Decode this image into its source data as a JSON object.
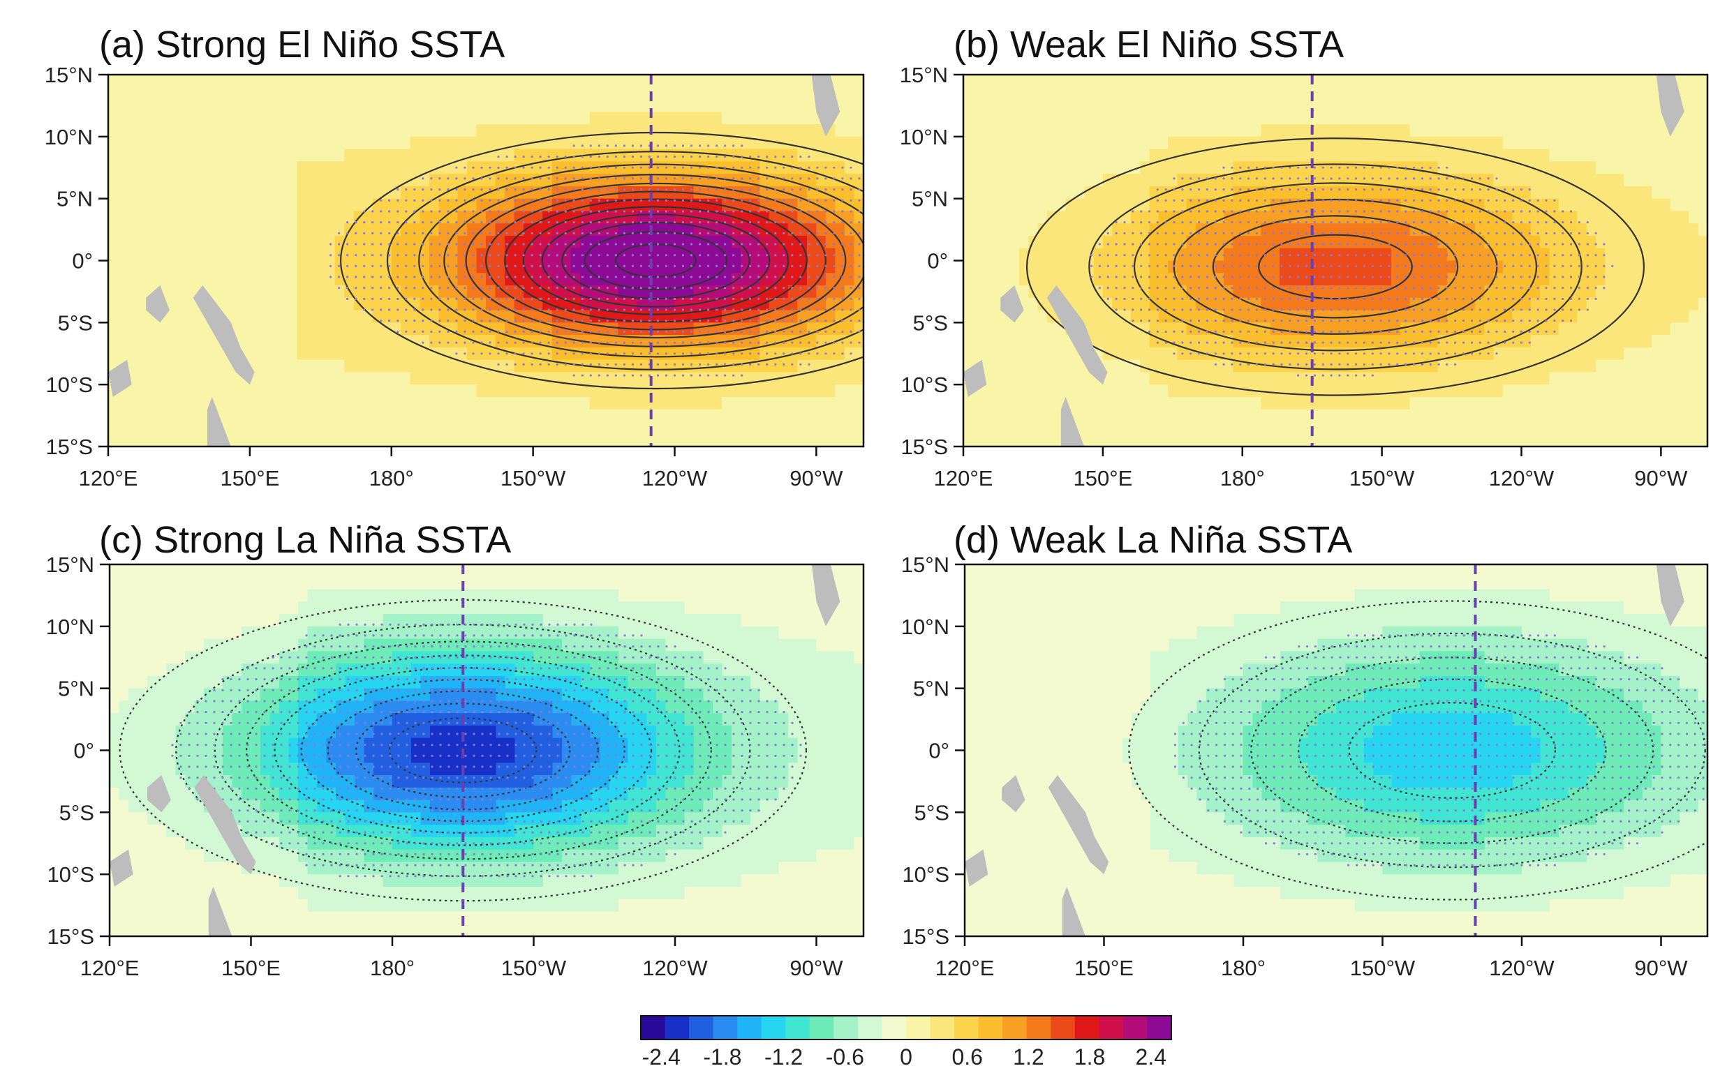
{
  "figure": {
    "colormap": [
      "#2a0a9a",
      "#1630c8",
      "#1f5fe0",
      "#2a8cf0",
      "#20b4f6",
      "#26d6f0",
      "#40e6d2",
      "#6eecb8",
      "#a4f2c8",
      "#d2f8d4",
      "#f4fad0",
      "#f8f4a8",
      "#fae67a",
      "#fbd44c",
      "#fbbe2c",
      "#f8a024",
      "#f47a1c",
      "#ec4a18",
      "#e01818",
      "#d0104a",
      "#b40c78",
      "#8c0a96"
    ],
    "colorbar": {
      "ticks": [
        "-2.4",
        "-1.8",
        "-1.2",
        "-0.6",
        "0",
        "0.6",
        "1.2",
        "1.8",
        "2.4"
      ],
      "min": -2.6,
      "max": 2.6
    },
    "axes": {
      "x_ticks": [
        "120°E",
        "150°E",
        "180°",
        "150°W",
        "120°W",
        "90°W"
      ],
      "y_ticks": [
        "15°N",
        "10°N",
        "5°N",
        "0°",
        "5°S",
        "10°S",
        "15°S"
      ]
    },
    "land_color": "#bdbdbd",
    "dashed_line_color": "#6a3fb0",
    "stipple_color": "#8a7ad8"
  },
  "chart_data": [
    {
      "type": "heatmap",
      "title": "(a) Strong El Niño SSTA",
      "xlim": [
        120,
        280
      ],
      "ylim": [
        -15,
        15
      ],
      "xlabel": "",
      "ylabel": "",
      "peak": {
        "lon": 236,
        "lat": 0,
        "value": 2.5
      },
      "spread": {
        "lon": 42,
        "lat": 6.5
      },
      "dashed_line_lon": 235
    },
    {
      "type": "heatmap",
      "title": "(b) Weak El Niño SSTA",
      "xlim": [
        120,
        280
      ],
      "ylim": [
        -15,
        15
      ],
      "xlabel": "",
      "ylabel": "",
      "peak": {
        "lon": 200,
        "lat": -0.5,
        "value": 1.35
      },
      "spread": {
        "lon": 48,
        "lat": 7.5
      },
      "dashed_line_lon": 195
    },
    {
      "type": "heatmap",
      "title": "(c) Strong La Niña SSTA",
      "xlim": [
        120,
        280
      ],
      "ylim": [
        -15,
        15
      ],
      "xlabel": "",
      "ylabel": "",
      "peak": {
        "lon": 195,
        "lat": 0,
        "value": -2.0
      },
      "spread": {
        "lon": 48,
        "lat": 8
      },
      "dashed_line_lon": 195
    },
    {
      "type": "heatmap",
      "title": "(d) Weak La Niña SSTA",
      "xlim": [
        120,
        280
      ],
      "ylim": [
        -15,
        15
      ],
      "xlabel": "",
      "ylabel": "",
      "peak": {
        "lon": 225,
        "lat": 0,
        "value": -1.2
      },
      "spread": {
        "lon": 52,
        "lat": 9
      },
      "dashed_line_lon": 230
    }
  ]
}
